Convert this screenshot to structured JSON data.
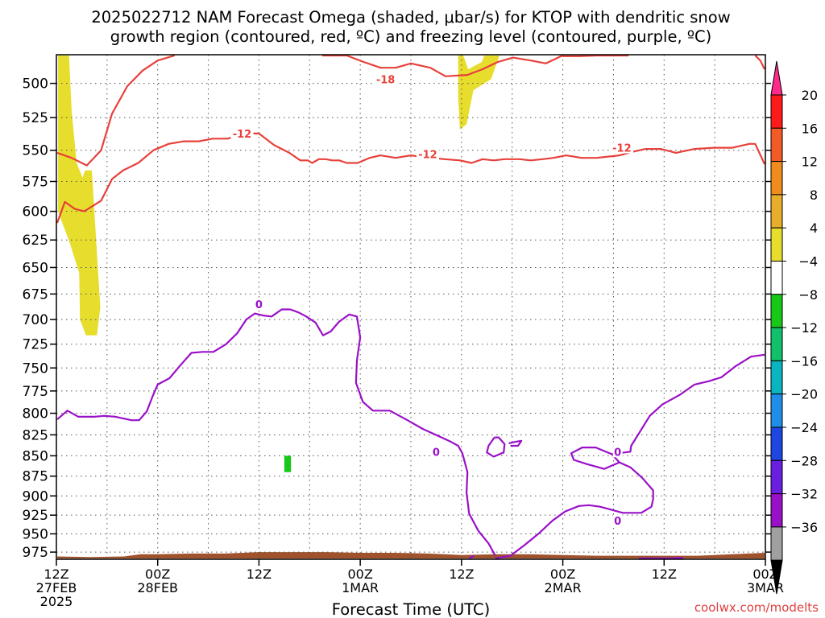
{
  "title_line1": "2025022712 NAM Forecast Omega (shaded, μbar/s) for KTOP with dendritic snow",
  "title_line2": "growth region (contoured, red, ºC) and freezing level (contoured, purple, ºC)",
  "credit": "coolwx.com/modelts",
  "colors": {
    "snow_contour": "#e8403a",
    "freezing_contour": "#9a10c8",
    "omega_positive": "#e6dd2c",
    "omega_negative": "#18c818",
    "terrain": "#a0522d",
    "grid": "#555555"
  },
  "chart_data": {
    "type": "heatmap",
    "xlabel": "Forecast Time (UTC)",
    "ylabel": "",
    "x_unit": "forecast hour from 2025-02-27 12Z",
    "xlim": [
      0,
      84
    ],
    "ylim": [
      985,
      480
    ],
    "y_log": true,
    "grid": true,
    "x_ticks": [
      {
        "value": 0,
        "lines": [
          "12Z",
          "27FEB",
          "2025"
        ]
      },
      {
        "value": 12,
        "lines": [
          "00Z",
          "28FEB"
        ]
      },
      {
        "value": 24,
        "lines": [
          "12Z"
        ]
      },
      {
        "value": 36,
        "lines": [
          "00Z",
          "1MAR"
        ]
      },
      {
        "value": 48,
        "lines": [
          "12Z"
        ]
      },
      {
        "value": 60,
        "lines": [
          "00Z",
          "2MAR"
        ]
      },
      {
        "value": 72,
        "lines": [
          "12Z"
        ]
      },
      {
        "value": 84,
        "lines": [
          "00Z",
          "3MAR"
        ]
      }
    ],
    "y_ticks": [
      500,
      525,
      550,
      575,
      600,
      625,
      650,
      675,
      700,
      725,
      750,
      775,
      800,
      825,
      850,
      875,
      900,
      925,
      950,
      975
    ],
    "colorbar": {
      "labels": [
        "20",
        "16",
        "12",
        "8",
        "4",
        "−4",
        "−8",
        "−12",
        "−16",
        "−20",
        "−24",
        "−28",
        "−32",
        "−36"
      ],
      "colors": [
        "#ff1a1a",
        "#f25a26",
        "#f08c1e",
        "#e6ae2a",
        "#e6dd2c",
        "#ffffff",
        "#18c818",
        "#10c06a",
        "#0ab4c0",
        "#1e8ee8",
        "#1e46e0",
        "#6a1ee0",
        "#9a10c8",
        "#a0a0a0"
      ],
      "top_color": "#ff2a8a",
      "bottom_color": "#000000"
    },
    "contour_labels": [
      {
        "text": "-18",
        "x": 39.0,
        "y": 497.0,
        "color": "#e8403a"
      },
      {
        "text": "-12",
        "x": 22.0,
        "y": 537.0,
        "color": "#e8403a"
      },
      {
        "text": "-12",
        "x": 44.0,
        "y": 553.0,
        "color": "#e8403a"
      },
      {
        "text": "-12",
        "x": 67.0,
        "y": 548.0,
        "color": "#e8403a"
      },
      {
        "text": "0",
        "x": 24.0,
        "y": 685.0,
        "color": "#9a10c8"
      },
      {
        "text": "0",
        "x": 45.0,
        "y": 845.0,
        "color": "#9a10c8"
      },
      {
        "text": "0",
        "x": 66.5,
        "y": 845.0,
        "color": "#9a10c8"
      },
      {
        "text": "0",
        "x": 66.5,
        "y": 932.0,
        "color": "#9a10c8"
      }
    ],
    "series": [
      {
        "kind": "contour",
        "color": "#e8403a",
        "points": [
          [
            0,
            552
          ],
          [
            1.8,
            556
          ],
          [
            3.6,
            562
          ],
          [
            5.3,
            550
          ],
          [
            6.6,
            522
          ],
          [
            8.4,
            502
          ],
          [
            10.2,
            491
          ],
          [
            12,
            484
          ],
          [
            14,
            478
          ]
        ]
      },
      {
        "kind": "contour",
        "color": "#e8403a",
        "points": [
          [
            0,
            610
          ],
          [
            1.0,
            592
          ],
          [
            2.2,
            598
          ],
          [
            3.3,
            600
          ],
          [
            5.3,
            591
          ],
          [
            6.6,
            573
          ],
          [
            7.9,
            566
          ],
          [
            9.7,
            560
          ],
          [
            11.5,
            550
          ],
          [
            13.3,
            545
          ],
          [
            15.1,
            543
          ],
          [
            16.9,
            543
          ],
          [
            18.5,
            541
          ],
          [
            20.3,
            541
          ],
          [
            22.2,
            537
          ],
          [
            24.0,
            537
          ],
          [
            25.8,
            546
          ],
          [
            27.6,
            552
          ],
          [
            28.9,
            558
          ],
          [
            29.8,
            558
          ],
          [
            30.3,
            560
          ],
          [
            31.1,
            557
          ],
          [
            31.9,
            557
          ],
          [
            32.7,
            558
          ],
          [
            33.5,
            558
          ],
          [
            34.4,
            560
          ],
          [
            35.7,
            560
          ],
          [
            37.1,
            556
          ],
          [
            38.4,
            554
          ],
          [
            40.2,
            556
          ],
          [
            42.0,
            554
          ],
          [
            44.3,
            556
          ],
          [
            46.0,
            557
          ],
          [
            47.8,
            558
          ],
          [
            49.2,
            560
          ],
          [
            50.5,
            557
          ],
          [
            51.8,
            558
          ],
          [
            53.1,
            557
          ],
          [
            54.9,
            557
          ],
          [
            56.2,
            558
          ],
          [
            57.6,
            557
          ],
          [
            58.9,
            556
          ],
          [
            60.4,
            554
          ],
          [
            62.2,
            556
          ],
          [
            64.0,
            556
          ],
          [
            66.7,
            554
          ],
          [
            68.4,
            551
          ],
          [
            69.8,
            549
          ],
          [
            71.6,
            549
          ],
          [
            73.4,
            552
          ],
          [
            75.6,
            549
          ],
          [
            77.9,
            548
          ],
          [
            80.1,
            548
          ],
          [
            82.1,
            545
          ],
          [
            82.8,
            545
          ],
          [
            84,
            561
          ]
        ]
      },
      {
        "kind": "contour",
        "color": "#e8403a",
        "points": [
          [
            31.5,
            476
          ],
          [
            34.4,
            479
          ],
          [
            36.4,
            485
          ],
          [
            38.4,
            489
          ],
          [
            40.2,
            489
          ],
          [
            42.0,
            486
          ],
          [
            44.3,
            489
          ],
          [
            46.1,
            495
          ],
          [
            48.7,
            494
          ],
          [
            50.5,
            490
          ],
          [
            52.3,
            485
          ],
          [
            54.1,
            482
          ],
          [
            56.2,
            484
          ],
          [
            58.0,
            486
          ],
          [
            59.8,
            481
          ],
          [
            62.0,
            481
          ],
          [
            64.0,
            479
          ],
          [
            66.2,
            477
          ],
          [
            67.8,
            476
          ]
        ]
      },
      {
        "kind": "contour",
        "color": "#e8403a",
        "points": [
          [
            82.8,
            475
          ],
          [
            83.4,
            484
          ],
          [
            84,
            490
          ]
        ]
      },
      {
        "kind": "contour",
        "color": "#9a10c8",
        "points": [
          [
            0,
            807
          ],
          [
            1.3,
            797
          ],
          [
            2.6,
            804
          ],
          [
            4.5,
            804
          ],
          [
            5.7,
            803
          ],
          [
            7.0,
            804
          ],
          [
            8.9,
            808
          ],
          [
            9.8,
            808
          ],
          [
            10.7,
            798
          ],
          [
            11.4,
            781
          ],
          [
            12.0,
            768
          ],
          [
            13.4,
            761
          ],
          [
            14.7,
            747
          ],
          [
            16.0,
            734
          ],
          [
            17.3,
            733
          ],
          [
            18.6,
            733
          ],
          [
            20.1,
            725
          ],
          [
            21.4,
            714
          ],
          [
            22.5,
            700
          ],
          [
            23.5,
            694
          ],
          [
            24.5,
            696
          ],
          [
            25.5,
            697
          ],
          [
            26.7,
            690
          ],
          [
            27.7,
            690
          ],
          [
            28.7,
            693
          ],
          [
            29.6,
            697
          ],
          [
            30.7,
            703
          ],
          [
            31.6,
            716
          ],
          [
            32.5,
            712
          ],
          [
            33.5,
            702
          ],
          [
            34.7,
            695
          ],
          [
            35.6,
            697
          ],
          [
            36.0,
            718
          ],
          [
            35.6,
            742
          ],
          [
            35.5,
            766
          ],
          [
            36.3,
            787
          ],
          [
            37.5,
            797
          ],
          [
            39.5,
            797
          ],
          [
            41.6,
            808
          ],
          [
            43.4,
            818
          ],
          [
            45.4,
            827
          ],
          [
            46.7,
            833
          ],
          [
            47.6,
            838
          ],
          [
            48.1,
            847
          ],
          [
            48.7,
            870
          ],
          [
            48.6,
            896
          ],
          [
            48.9,
            923
          ],
          [
            50.0,
            946
          ],
          [
            51.2,
            963
          ],
          [
            52.0,
            980
          ]
        ]
      },
      {
        "kind": "contour",
        "color": "#9a10c8",
        "points": [
          [
            48.9,
            985
          ],
          [
            49.5,
            980
          ]
        ]
      },
      {
        "kind": "contour",
        "color": "#9a10c8",
        "points": [
          [
            52.0,
            988
          ],
          [
            53.8,
            980
          ],
          [
            55.5,
            965
          ],
          [
            57.1,
            950
          ],
          [
            58.8,
            932
          ],
          [
            60.3,
            920
          ],
          [
            61.9,
            913
          ],
          [
            63.1,
            912
          ],
          [
            64.4,
            914
          ],
          [
            65.8,
            918
          ],
          [
            67.1,
            922
          ],
          [
            69.3,
            922
          ],
          [
            70.5,
            914
          ],
          [
            70.7,
            904
          ],
          [
            70.7,
            893
          ],
          [
            69.4,
            877
          ],
          [
            68.0,
            864
          ],
          [
            66.7,
            858
          ],
          [
            65.8,
            848
          ],
          [
            68.0,
            845
          ],
          [
            68.1,
            838
          ],
          [
            69.1,
            822
          ],
          [
            70.3,
            803
          ],
          [
            71.8,
            790
          ],
          [
            73.9,
            779
          ],
          [
            75.6,
            768
          ],
          [
            77.4,
            764
          ],
          [
            78.8,
            760
          ],
          [
            80.5,
            748
          ],
          [
            82.3,
            738
          ],
          [
            84,
            736
          ]
        ]
      },
      {
        "kind": "contour",
        "color": "#9a10c8",
        "points": [
          [
            66.7,
            858
          ],
          [
            64.9,
            866
          ],
          [
            62.8,
            860
          ],
          [
            61.3,
            855
          ],
          [
            61.0,
            847
          ],
          [
            62.3,
            840
          ],
          [
            63.9,
            840
          ],
          [
            65.8,
            848
          ]
        ]
      },
      {
        "kind": "contour",
        "color": "#9a10c8",
        "points": [
          [
            51.9,
            828
          ],
          [
            51.2,
            838
          ],
          [
            51.0,
            846
          ],
          [
            51.8,
            851
          ],
          [
            53.0,
            846
          ],
          [
            53.1,
            836
          ],
          [
            52.4,
            828
          ],
          [
            51.9,
            828
          ]
        ]
      },
      {
        "kind": "contour",
        "color": "#9a10c8",
        "points": [
          [
            53.6,
            835
          ],
          [
            54.5,
            833
          ],
          [
            55.1,
            832
          ],
          [
            54.7,
            838
          ],
          [
            53.8,
            838
          ]
        ]
      },
      {
        "kind": "contour",
        "color": "#9a10c8",
        "points": [
          [
            69.0,
            990
          ],
          [
            72.5,
            985
          ],
          [
            74.0,
            983
          ],
          [
            74.2,
            986
          ],
          [
            73.0,
            988
          ],
          [
            71.5,
            986
          ]
        ]
      }
    ],
    "shaded_regions": [
      {
        "color": "#e6dd2c",
        "points": [
          [
            0.2,
            478
          ],
          [
            1.5,
            478
          ],
          [
            1.8,
            520
          ],
          [
            2.4,
            560
          ],
          [
            3.1,
            572
          ],
          [
            3.4,
            566
          ],
          [
            4.2,
            566
          ],
          [
            4.5,
            600
          ],
          [
            5.2,
            688
          ],
          [
            4.8,
            716
          ],
          [
            3.5,
            716
          ],
          [
            2.8,
            700
          ],
          [
            2.7,
            655
          ],
          [
            1.6,
            628
          ],
          [
            0.8,
            612
          ],
          [
            0.2,
            600
          ]
        ]
      },
      {
        "color": "#e6dd2c",
        "points": [
          [
            47.6,
            478
          ],
          [
            48.2,
            478
          ],
          [
            48.8,
            490
          ],
          [
            50.4,
            485
          ],
          [
            50.7,
            478
          ],
          [
            52.5,
            478
          ],
          [
            51.5,
            497
          ],
          [
            49.4,
            505
          ],
          [
            48.6,
            530
          ],
          [
            47.8,
            534
          ],
          [
            47.6,
            510
          ]
        ]
      },
      {
        "color": "#18c818",
        "points": [
          [
            27.0,
            850
          ],
          [
            27.8,
            850
          ],
          [
            27.8,
            870
          ],
          [
            27.0,
            870
          ]
        ]
      }
    ],
    "terrain_surface": [
      [
        0,
        981
      ],
      [
        4,
        982
      ],
      [
        8,
        981
      ],
      [
        10,
        978
      ],
      [
        12,
        978
      ],
      [
        16,
        977
      ],
      [
        20,
        977
      ],
      [
        24,
        975
      ],
      [
        26,
        975
      ],
      [
        28,
        975
      ],
      [
        32,
        975
      ],
      [
        36,
        976
      ],
      [
        40,
        976
      ],
      [
        44,
        977
      ],
      [
        46,
        978
      ],
      [
        48,
        979
      ],
      [
        52,
        978
      ],
      [
        56,
        978
      ],
      [
        60,
        979
      ],
      [
        64,
        980
      ],
      [
        68,
        980
      ],
      [
        72,
        980
      ],
      [
        76,
        980
      ],
      [
        78,
        979
      ],
      [
        80,
        978
      ],
      [
        82,
        977
      ],
      [
        84,
        976
      ]
    ]
  }
}
